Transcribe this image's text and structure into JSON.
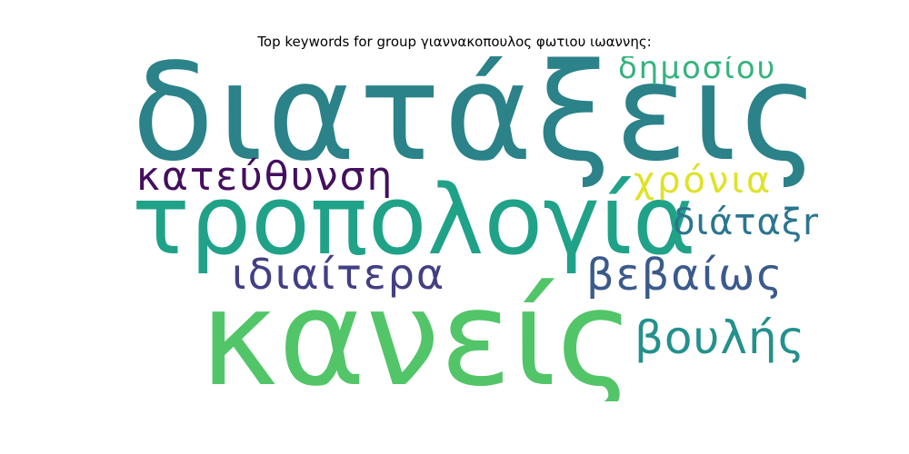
{
  "title": "Top keywords for group γιαννακοπουλος φωτιου ιωαννης:",
  "wordcloud": {
    "words": [
      {
        "text": "διατάξεις",
        "color": "#2b8289"
      },
      {
        "text": "δημοσίου",
        "color": "#36b37e"
      },
      {
        "text": "κατεύθυνση",
        "color": "#440f5e"
      },
      {
        "text": "χρόνια",
        "color": "#dfe227"
      },
      {
        "text": "τροπολογία",
        "color": "#20a288"
      },
      {
        "text": "διάταξη",
        "color": "#2a768e"
      },
      {
        "text": "ιδιαίτερα",
        "color": "#423f85"
      },
      {
        "text": "βεβαίως",
        "color": "#3b5a8c"
      },
      {
        "text": "κανείς",
        "color": "#52c569"
      },
      {
        "text": "βουλής",
        "color": "#24918c"
      }
    ]
  }
}
